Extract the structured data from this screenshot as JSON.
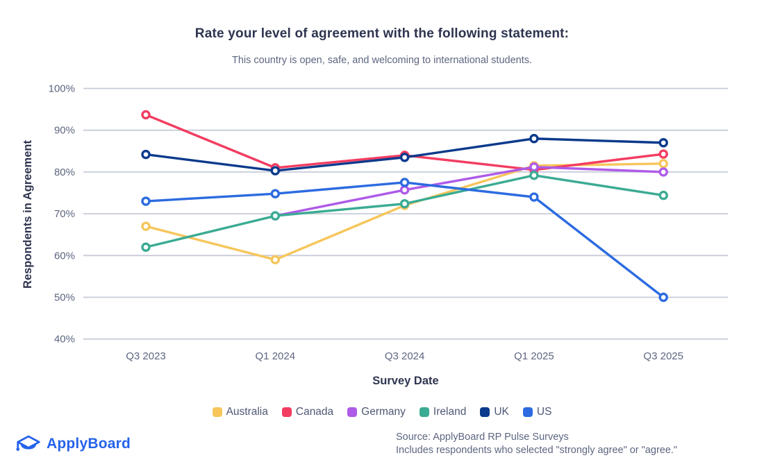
{
  "chart_data": {
    "type": "line",
    "title": "Rate your level of agreement with the following statement:",
    "subtitle": "This country is open, safe, and welcoming to international students.",
    "xlabel": "Survey Date",
    "ylabel": "Respondents in Agreement",
    "categories": [
      "Q3 2023",
      "Q1 2024",
      "Q3 2024",
      "Q1 2025",
      "Q3 2025"
    ],
    "series": [
      {
        "name": "Australia",
        "color": "#F6C65B",
        "values": [
          67,
          59,
          72,
          81.5,
          82
        ]
      },
      {
        "name": "Canada",
        "color": "#F23D61",
        "values": [
          93.7,
          81,
          84,
          80.5,
          84.3
        ]
      },
      {
        "name": "Germany",
        "color": "#AE5BE8",
        "values": [
          null,
          69.5,
          75.7,
          81.2,
          80
        ]
      },
      {
        "name": "Ireland",
        "color": "#3BAB93",
        "values": [
          62,
          69.5,
          72.4,
          79.2,
          74.4
        ]
      },
      {
        "name": "UK",
        "color": "#0B3A8C",
        "values": [
          84.2,
          80.3,
          83.5,
          88,
          87
        ]
      },
      {
        "name": "US",
        "color": "#2C6BE0",
        "values": [
          73,
          74.8,
          77.5,
          74,
          50
        ]
      }
    ],
    "ylim": [
      40,
      100
    ],
    "ytick_step": 10,
    "ytick_suffix": "%",
    "grid": "horizontal",
    "legend_position": "bottom",
    "gridline_color": "#C6CBD8",
    "tick_label_color": "#5D6680"
  },
  "footer": {
    "logo_text": "ApplyBoard",
    "source_line1": "Source: ApplyBoard RP Pulse Surveys",
    "source_line2": "Includes respondents who selected \"strongly agree\" or \"agree.\""
  }
}
